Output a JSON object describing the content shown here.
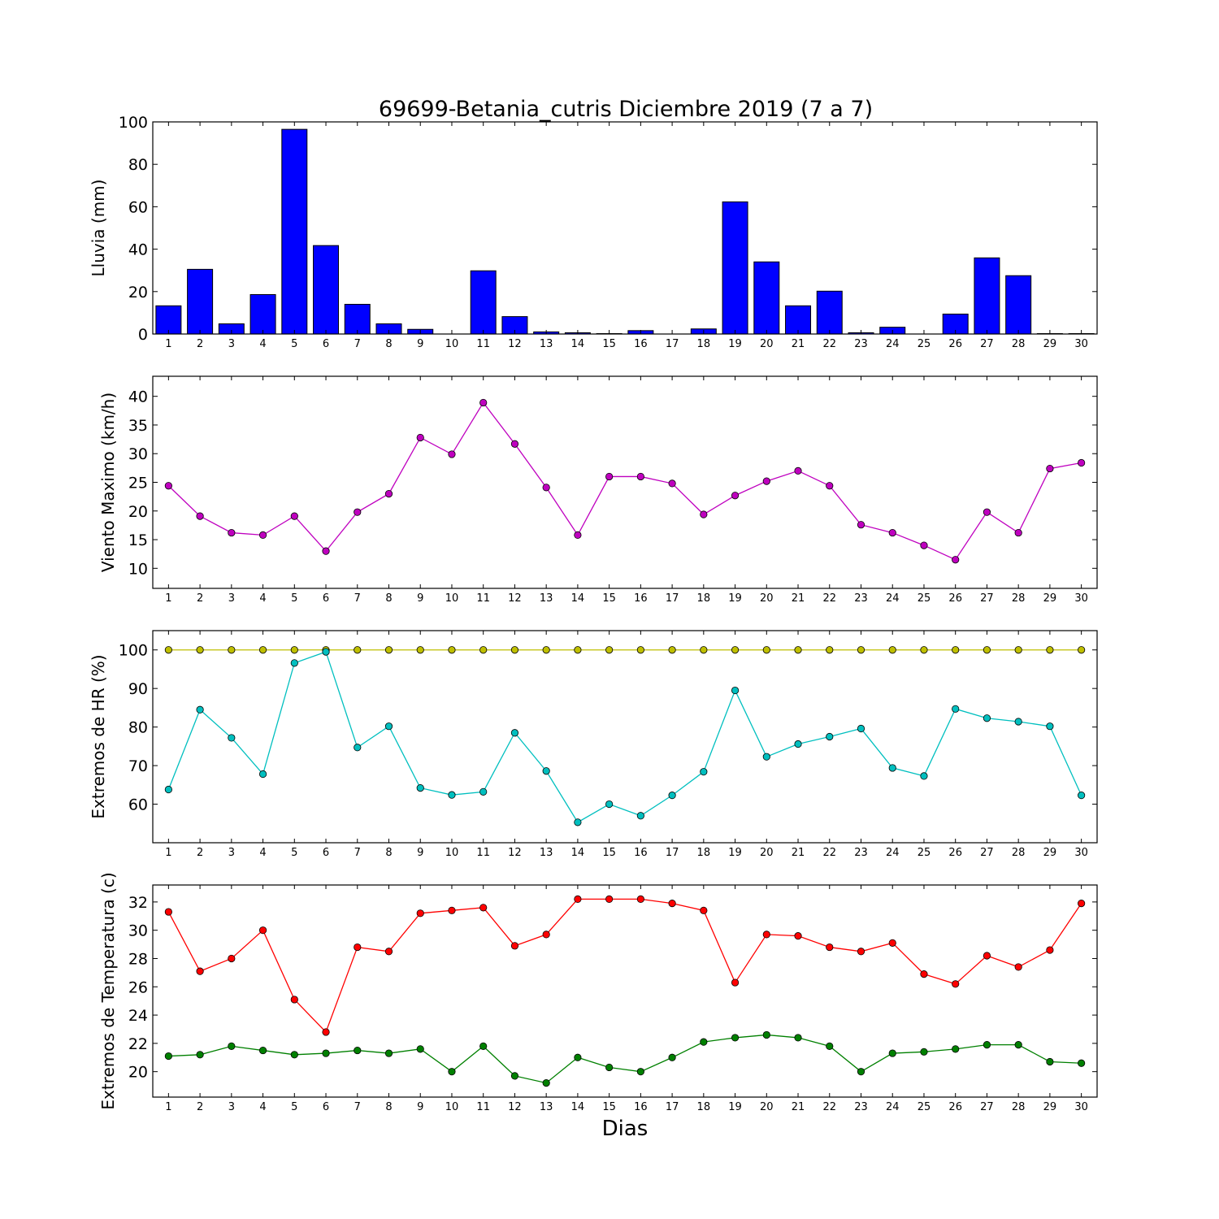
{
  "chart_data": {
    "title": "69699-Betania_cutris Diciembre 2019  (7 a 7)",
    "xlabel": "Dias",
    "days": [
      1,
      2,
      3,
      4,
      5,
      6,
      7,
      8,
      9,
      10,
      11,
      12,
      13,
      14,
      15,
      16,
      17,
      18,
      19,
      20,
      21,
      22,
      23,
      24,
      25,
      26,
      27,
      28,
      29,
      30
    ],
    "panels": [
      {
        "type": "bar",
        "ylabel": "Lluvia (mm)",
        "ylim": [
          0,
          100
        ],
        "yticks": [
          0,
          20,
          40,
          60,
          80,
          100
        ],
        "series": [
          {
            "color": "#0000ff",
            "values": [
              13.3,
              30.5,
              4.8,
              18.6,
              96.5,
              41.7,
              14.0,
              4.8,
              2.2,
              0.0,
              29.8,
              8.2,
              1.0,
              0.6,
              0.2,
              1.6,
              0.0,
              2.4,
              62.3,
              34.0,
              13.3,
              20.2,
              0.6,
              3.2,
              0.0,
              9.4,
              35.9,
              27.5,
              0.2,
              0.2
            ]
          }
        ]
      },
      {
        "type": "line",
        "ylabel": "Viento Maximo (km/h)",
        "ylim": [
          6.5,
          43.5
        ],
        "yticks": [
          10,
          15,
          20,
          25,
          30,
          35,
          40
        ],
        "series": [
          {
            "color": "#bf00bf",
            "values": [
              24.4,
              19.1,
              16.2,
              15.8,
              19.1,
              13.0,
              19.8,
              23.0,
              32.8,
              29.9,
              38.9,
              31.7,
              24.1,
              15.8,
              26.0,
              26.0,
              24.8,
              19.4,
              22.7,
              25.2,
              27.0,
              24.4,
              17.6,
              16.2,
              14.0,
              11.5,
              19.8,
              16.2,
              27.4,
              28.4
            ]
          }
        ]
      },
      {
        "type": "line",
        "ylabel": "Extremos de HR (%)",
        "ylim": [
          50,
          105
        ],
        "yticks": [
          60,
          70,
          80,
          90,
          100
        ],
        "series": [
          {
            "color": "#bfbf00",
            "values": [
              100,
              100,
              100,
              100,
              100,
              100,
              100,
              100,
              100,
              100,
              100,
              100,
              100,
              100,
              100,
              100,
              100,
              100,
              100,
              100,
              100,
              100,
              100,
              100,
              100,
              100,
              100,
              100,
              100,
              100
            ]
          },
          {
            "color": "#00bfbf",
            "values": [
              63.8,
              84.5,
              77.2,
              67.8,
              96.6,
              99.5,
              74.7,
              80.2,
              64.2,
              62.4,
              63.2,
              78.5,
              68.6,
              55.3,
              60.0,
              57.0,
              62.3,
              68.4,
              89.5,
              72.3,
              75.6,
              77.5,
              79.6,
              69.4,
              67.3,
              84.7,
              82.3,
              81.4,
              80.2,
              62.3
            ]
          }
        ]
      },
      {
        "type": "line",
        "ylabel": "Extremos de Temperatura (c)",
        "ylim": [
          18.2,
          33.2
        ],
        "yticks": [
          20,
          22,
          24,
          26,
          28,
          30,
          32
        ],
        "series": [
          {
            "color": "#ff0000",
            "values": [
              31.3,
              27.1,
              28.0,
              30.0,
              25.1,
              22.8,
              28.8,
              28.5,
              31.2,
              31.4,
              31.6,
              28.9,
              29.7,
              32.2,
              32.2,
              32.2,
              31.9,
              31.4,
              26.3,
              29.7,
              29.6,
              28.8,
              28.5,
              29.1,
              26.9,
              26.2,
              28.2,
              27.4,
              28.6,
              31.9
            ]
          },
          {
            "color": "#008000",
            "values": [
              21.1,
              21.2,
              21.8,
              21.5,
              21.2,
              21.3,
              21.5,
              21.3,
              21.6,
              20.0,
              21.8,
              19.7,
              19.2,
              21.0,
              20.3,
              20.0,
              21.0,
              22.1,
              22.4,
              22.6,
              22.4,
              21.8,
              20.0,
              21.3,
              21.4,
              21.6,
              21.9,
              21.9,
              20.7,
              20.6
            ]
          }
        ]
      }
    ]
  }
}
